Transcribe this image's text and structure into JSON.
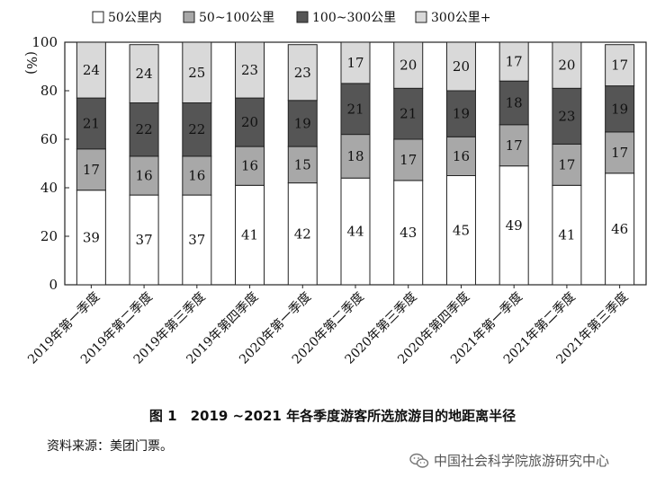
{
  "figure": {
    "caption": "图 1　2019 ~2021 年各季度游客所选旅游目的地距离半径",
    "source": "资料来源：美团门票。",
    "watermark": "中国社会科学院旅游研究中心"
  },
  "chart_data": {
    "type": "bar",
    "stacked": true,
    "ylabel": "%",
    "ylim": [
      0,
      100
    ],
    "yticks": [
      0,
      20,
      40,
      60,
      80,
      100
    ],
    "legend_position": "top",
    "categories": [
      "2019年第一季度",
      "2019年第二季度",
      "2019年第三季度",
      "2019年第四季度",
      "2020年第一季度",
      "2020年第二季度",
      "2020年第三季度",
      "2020年第四季度",
      "2021年第一季度",
      "2021年第二季度",
      "2021年第三季度"
    ],
    "series": [
      {
        "name": "50公里内",
        "color": "#ffffff",
        "values": [
          39,
          37,
          37,
          41,
          42,
          44,
          43,
          45,
          49,
          41,
          46
        ]
      },
      {
        "name": "50~100公里",
        "color": "#a8a8a8",
        "values": [
          17,
          16,
          16,
          16,
          15,
          18,
          17,
          16,
          17,
          17,
          17
        ]
      },
      {
        "name": "100~300公里",
        "color": "#555555",
        "values": [
          21,
          22,
          22,
          20,
          19,
          21,
          21,
          19,
          18,
          23,
          19
        ]
      },
      {
        "name": "300公里+",
        "color": "#d9d9d9",
        "values": [
          24,
          24,
          25,
          23,
          23,
          17,
          20,
          20,
          17,
          20,
          17
        ]
      }
    ]
  }
}
